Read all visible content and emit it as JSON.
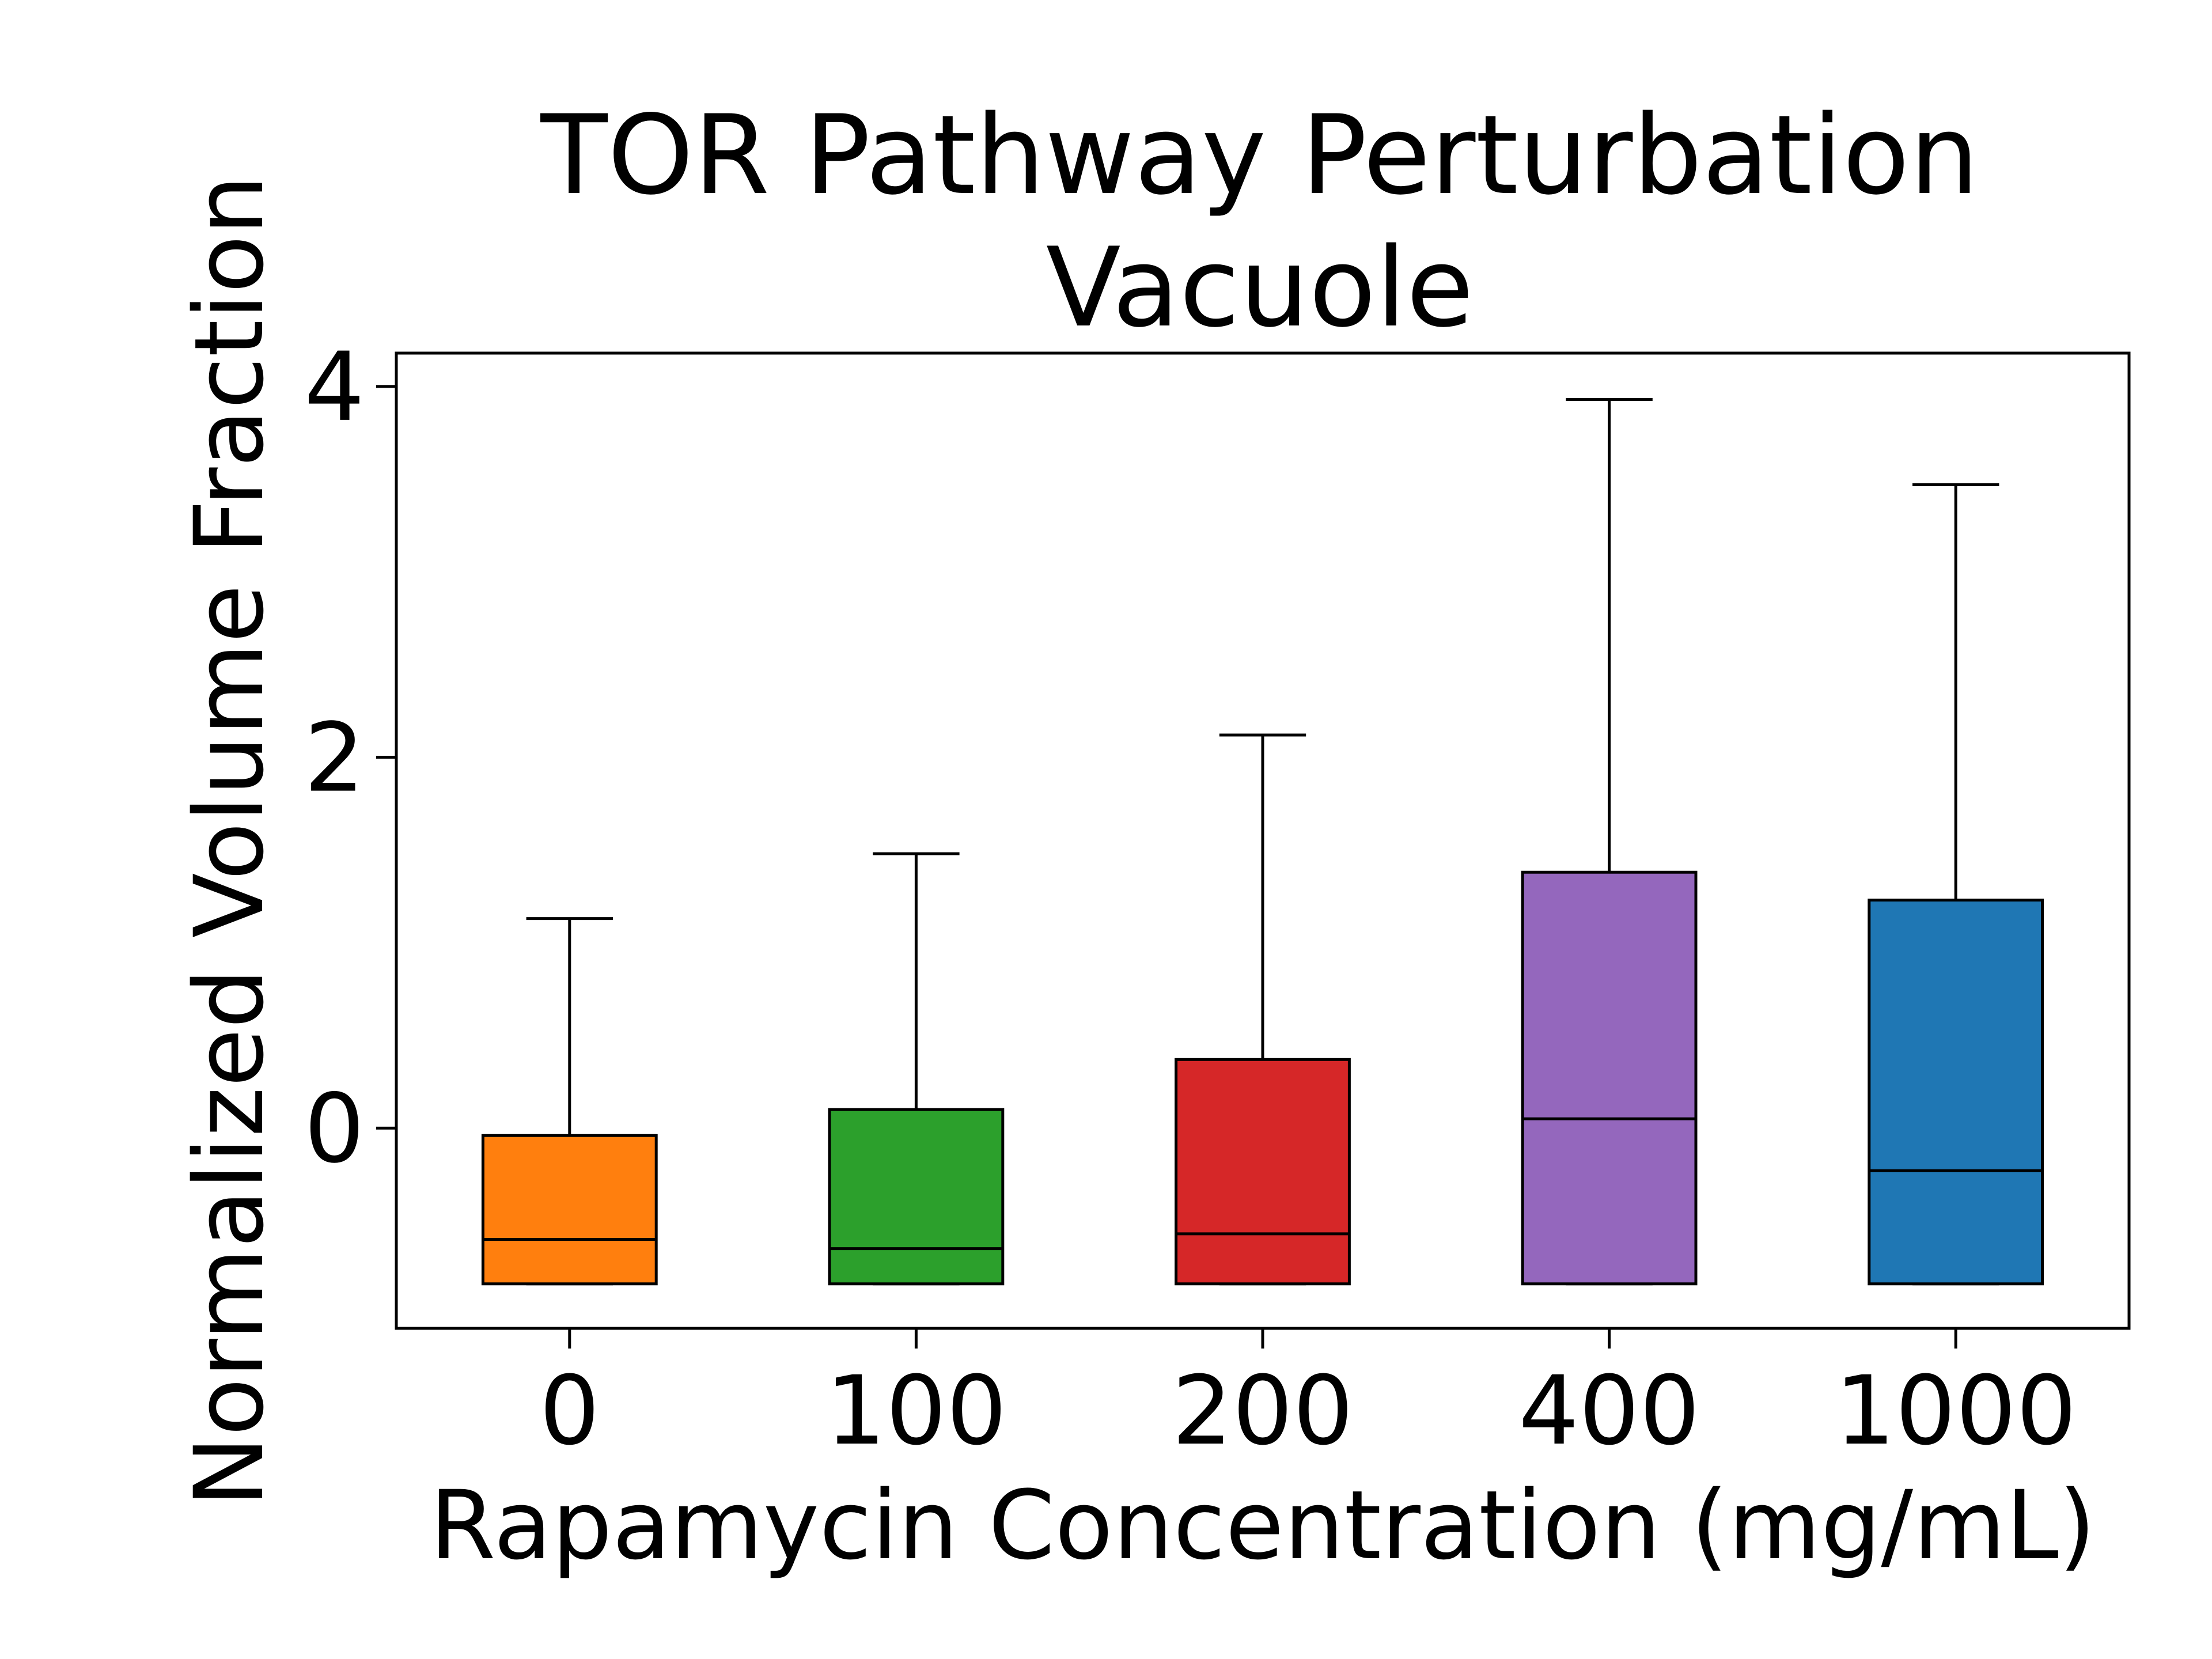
{
  "chart_data": {
    "type": "box",
    "title": [
      "TOR Pathway Perturbation",
      "Vacuole"
    ],
    "xlabel": "Rapamycin Concentration (mg/mL)",
    "ylabel": "Normalized Volume Fraction",
    "ylim": [
      -1.08,
      4.18
    ],
    "yticks": [
      "0",
      "2",
      "4"
    ],
    "grid": false,
    "legend": "none",
    "categories": [
      "0",
      "100",
      "200",
      "400",
      "1000"
    ],
    "boxes": [
      {
        "category": "0",
        "whislo": -0.84,
        "q1": -0.84,
        "med": -0.6,
        "q3": -0.04,
        "whishi": 1.13,
        "color": "#ff7f0e"
      },
      {
        "category": "100",
        "whislo": -0.84,
        "q1": -0.84,
        "med": -0.65,
        "q3": 0.1,
        "whishi": 1.48,
        "color": "#2ca02c"
      },
      {
        "category": "200",
        "whislo": -0.84,
        "q1": -0.84,
        "med": -0.57,
        "q3": 0.37,
        "whishi": 2.12,
        "color": "#d62728"
      },
      {
        "category": "400",
        "whislo": -0.84,
        "q1": -0.84,
        "med": 0.05,
        "q3": 1.38,
        "whishi": 3.93,
        "color": "#9467bd"
      },
      {
        "category": "1000",
        "whislo": -0.84,
        "q1": -0.84,
        "med": -0.23,
        "q3": 1.23,
        "whishi": 3.47,
        "color": "#1f77b4"
      }
    ]
  }
}
